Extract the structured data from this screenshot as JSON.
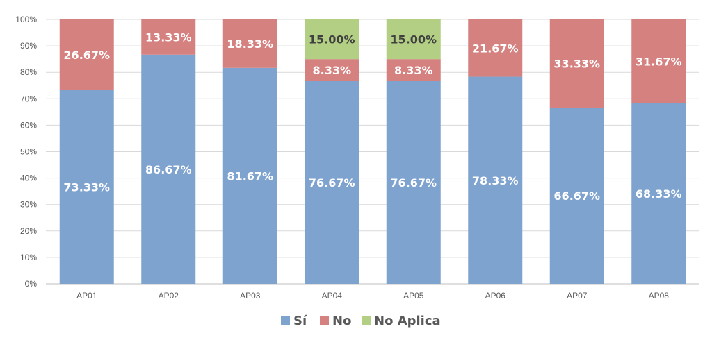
{
  "chart_data": {
    "type": "bar",
    "stacked": true,
    "categories": [
      "AP01",
      "AP02",
      "AP03",
      "AP04",
      "AP05",
      "AP06",
      "AP07",
      "AP08"
    ],
    "series": [
      {
        "name": "Sí",
        "color": "#7fa3cf",
        "label_color": "#ffffff",
        "values": [
          73.33,
          86.67,
          81.67,
          76.67,
          76.67,
          78.33,
          66.67,
          68.33
        ],
        "labels": [
          "73.33%",
          "86.67%",
          "81.67%",
          "76.67%",
          "76.67%",
          "78.33%",
          "66.67%",
          "68.33%"
        ]
      },
      {
        "name": "No",
        "color": "#d58180",
        "label_color": "#ffffff",
        "values": [
          26.67,
          13.33,
          18.33,
          8.33,
          8.33,
          21.67,
          33.33,
          31.67
        ],
        "labels": [
          "26.67%",
          "13.33%",
          "18.33%",
          "8.33%",
          "8.33%",
          "21.67%",
          "33.33%",
          "31.67%"
        ]
      },
      {
        "name": "No Aplica",
        "color": "#b3cf83",
        "label_color": "#404040",
        "values": [
          0,
          0,
          0,
          15.0,
          15.0,
          0,
          0,
          0
        ],
        "labels": [
          "",
          "",
          "",
          "15.00%",
          "15.00%",
          "",
          "",
          ""
        ]
      }
    ],
    "yticks": [
      "0%",
      "10%",
      "20%",
      "30%",
      "40%",
      "50%",
      "60%",
      "70%",
      "80%",
      "90%",
      "100%"
    ],
    "ylim": [
      0,
      100
    ],
    "grid": true,
    "legend_position": "bottom"
  }
}
